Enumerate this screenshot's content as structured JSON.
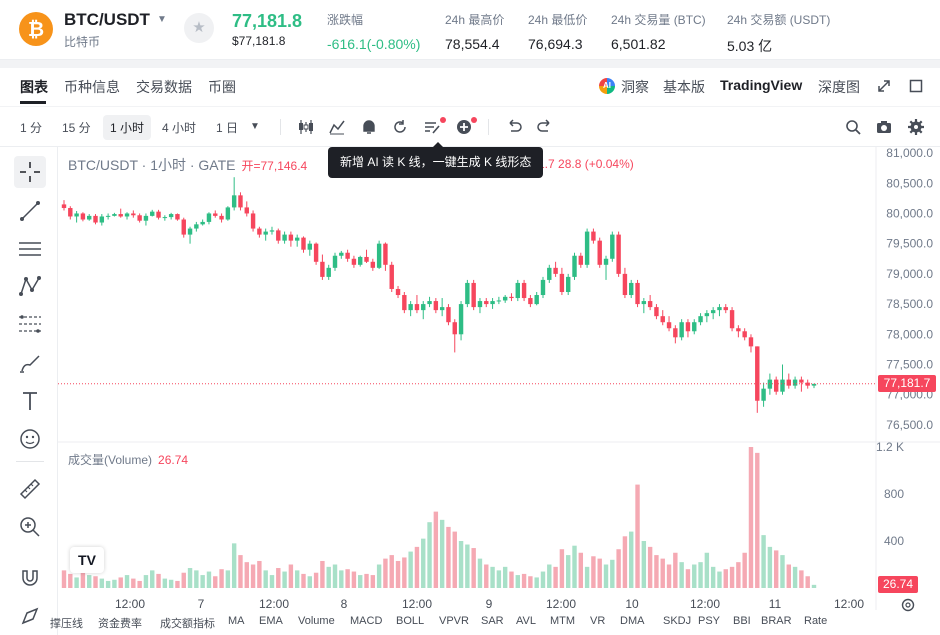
{
  "header": {
    "pair": "BTC/USDT",
    "pair_sub": "比特币",
    "coin_symbol": "₿",
    "last_price": "77,181.8",
    "last_price_sub": "$77,181.8",
    "stats": [
      {
        "label": "涨跌幅",
        "value": "-616.1(-0.80%)",
        "colored": true
      },
      {
        "label": "24h 最高价",
        "value": "78,554.4",
        "colored": false
      },
      {
        "label": "24h 最低价",
        "value": "76,694.3",
        "colored": false
      },
      {
        "label": "24h 交易量 (BTC)",
        "value": "6,501.82",
        "colored": false
      },
      {
        "label": "24h 交易额 (USDT)",
        "value": "5.03 亿",
        "colored": false
      }
    ]
  },
  "tabs": {
    "items": [
      "图表",
      "币种信息",
      "交易数据",
      "币圈"
    ],
    "right": {
      "ai": "洞察",
      "basic": "基本版",
      "tv": "TradingView",
      "depth": "深度图"
    }
  },
  "toolbar": {
    "timeframes": [
      "1 分",
      "15 分",
      "1 小时",
      "4 小时",
      "1 日"
    ],
    "active_timeframe": "1 小时"
  },
  "legend": {
    "title": "BTC/USDT · 1小时 · GATE",
    "open_text": "开=77,146.4",
    "right_text": "1.7  28.8 (+0.04%)",
    "volume_label": "成交量(Volume)",
    "volume_value": "26.74"
  },
  "tooltip": "新增 AI 读 K 线，一键生成 K 线形态",
  "price_tag": "77,181.7",
  "volume_tag": "26.74",
  "indicators": [
    "撑压线",
    "资金费率",
    "成交额指标",
    "MA",
    "EMA",
    "Volume",
    "MACD",
    "BOLL",
    "VPVR",
    "SAR",
    "AVL",
    "MTM",
    "VR",
    "DMA",
    "SKDJ",
    "PSY",
    "BBI",
    "BRAR",
    "Rate"
  ],
  "colors": {
    "up": "#2ebd85",
    "down": "#f6465d",
    "up_vol": "#a8e0c8",
    "down_vol": "#f5a9b3"
  },
  "chart_data": {
    "type": "candlestick",
    "title": "BTC/USDT · 1小时 · GATE",
    "price_axis": {
      "ticks": [
        81000,
        80500,
        80000,
        79500,
        79000,
        78500,
        78000,
        77500,
        77000,
        76500
      ],
      "range": [
        76300,
        81100
      ]
    },
    "volume_axis": {
      "ticks": [
        "1.2 K",
        "800",
        "400"
      ],
      "range": [
        0,
        1200
      ]
    },
    "x_ticks": [
      "12:00",
      "7",
      "12:00",
      "8",
      "12:00",
      "9",
      "12:00",
      "10",
      "12:00",
      "11",
      "12:00"
    ],
    "current_price": 77181.7,
    "candles": [
      [
        80150,
        80220,
        80050,
        80090,
        150
      ],
      [
        80090,
        80120,
        79900,
        79950,
        120
      ],
      [
        79950,
        80040,
        79850,
        80000,
        90
      ],
      [
        80000,
        80020,
        79870,
        79900,
        130
      ],
      [
        79900,
        79990,
        79880,
        79960,
        110
      ],
      [
        79960,
        79990,
        79820,
        79850,
        100
      ],
      [
        79850,
        79990,
        79800,
        79950,
        80
      ],
      [
        79950,
        80000,
        79900,
        79960,
        60
      ],
      [
        79960,
        80010,
        79950,
        79990,
        70
      ],
      [
        79990,
        80080,
        79930,
        79950,
        90
      ],
      [
        79950,
        80020,
        79900,
        80000,
        110
      ],
      [
        80000,
        80050,
        79930,
        79970,
        80
      ],
      [
        79970,
        80000,
        79850,
        79880,
        60
      ],
      [
        79880,
        80000,
        79800,
        79960,
        110
      ],
      [
        79960,
        80060,
        79950,
        80030,
        150
      ],
      [
        80030,
        80060,
        79900,
        79930,
        120
      ],
      [
        79930,
        79970,
        79880,
        79940,
        80
      ],
      [
        79940,
        80010,
        79900,
        79990,
        70
      ],
      [
        79990,
        80000,
        79880,
        79900,
        60
      ],
      [
        79900,
        79930,
        79600,
        79650,
        130
      ],
      [
        79650,
        79780,
        79500,
        79750,
        170
      ],
      [
        79750,
        79860,
        79700,
        79820,
        150
      ],
      [
        79820,
        79900,
        79800,
        79860,
        110
      ],
      [
        79860,
        80020,
        79820,
        80000,
        140
      ],
      [
        80000,
        80050,
        79930,
        79960,
        100
      ],
      [
        79960,
        80000,
        79850,
        79900,
        160
      ],
      [
        79900,
        80120,
        79880,
        80100,
        150
      ],
      [
        80100,
        80600,
        80050,
        80300,
        380
      ],
      [
        80300,
        80350,
        80050,
        80100,
        280
      ],
      [
        80100,
        80200,
        79950,
        80000,
        220
      ],
      [
        80000,
        80050,
        79700,
        79750,
        200
      ],
      [
        79750,
        79780,
        79600,
        79650,
        230
      ],
      [
        79650,
        79750,
        79550,
        79700,
        150
      ],
      [
        79700,
        79780,
        79650,
        79720,
        110
      ],
      [
        79720,
        79750,
        79500,
        79550,
        170
      ],
      [
        79550,
        79700,
        79500,
        79650,
        140
      ],
      [
        79650,
        79700,
        79450,
        79550,
        200
      ],
      [
        79550,
        79650,
        79450,
        79600,
        150
      ],
      [
        79600,
        79620,
        79350,
        79400,
        120
      ],
      [
        79400,
        79550,
        79300,
        79500,
        100
      ],
      [
        79500,
        79520,
        79150,
        79200,
        130
      ],
      [
        79200,
        79320,
        78900,
        78950,
        230
      ],
      [
        78950,
        79150,
        78900,
        79100,
        180
      ],
      [
        79100,
        79350,
        79050,
        79300,
        200
      ],
      [
        79300,
        79380,
        79250,
        79350,
        150
      ],
      [
        79350,
        79400,
        79200,
        79250,
        160
      ],
      [
        79250,
        79300,
        79100,
        79150,
        140
      ],
      [
        79150,
        79300,
        79120,
        79280,
        110
      ],
      [
        79280,
        79400,
        79180,
        79200,
        120
      ],
      [
        79200,
        79250,
        79050,
        79100,
        110
      ],
      [
        79100,
        79550,
        79080,
        79500,
        200
      ],
      [
        79500,
        79520,
        79050,
        79150,
        250
      ],
      [
        79150,
        79200,
        78700,
        78750,
        280
      ],
      [
        78750,
        78800,
        78600,
        78650,
        230
      ],
      [
        78650,
        78700,
        78350,
        78400,
        260
      ],
      [
        78400,
        78550,
        78300,
        78500,
        310
      ],
      [
        78500,
        78650,
        78350,
        78400,
        350
      ],
      [
        78400,
        78550,
        78250,
        78500,
        420
      ],
      [
        78500,
        78620,
        78450,
        78550,
        560
      ],
      [
        78550,
        78600,
        78350,
        78400,
        650
      ],
      [
        78400,
        78600,
        78300,
        78450,
        580
      ],
      [
        78450,
        78500,
        78150,
        78200,
        520
      ],
      [
        78200,
        78250,
        77700,
        78000,
        480
      ],
      [
        78000,
        78550,
        77900,
        78500,
        400
      ],
      [
        78500,
        78900,
        78450,
        78850,
        370
      ],
      [
        78850,
        78900,
        78400,
        78450,
        340
      ],
      [
        78450,
        78600,
        78350,
        78550,
        250
      ],
      [
        78550,
        78600,
        78450,
        78500,
        200
      ],
      [
        78500,
        78600,
        78420,
        78550,
        180
      ],
      [
        78550,
        78620,
        78500,
        78560,
        150
      ],
      [
        78560,
        78650,
        78520,
        78620,
        180
      ],
      [
        78620,
        78680,
        78550,
        78600,
        140
      ],
      [
        78600,
        78900,
        78550,
        78850,
        110
      ],
      [
        78850,
        78900,
        78550,
        78600,
        120
      ],
      [
        78600,
        78650,
        78450,
        78500,
        100
      ],
      [
        78500,
        78700,
        78480,
        78650,
        90
      ],
      [
        78650,
        78950,
        78600,
        78900,
        140
      ],
      [
        78900,
        79150,
        78850,
        79100,
        200
      ],
      [
        79100,
        79200,
        78950,
        79000,
        180
      ],
      [
        79000,
        79100,
        78650,
        78700,
        330
      ],
      [
        78700,
        79000,
        78650,
        78950,
        280
      ],
      [
        78950,
        79350,
        78900,
        79300,
        360
      ],
      [
        79300,
        79350,
        79100,
        79150,
        300
      ],
      [
        79150,
        79750,
        79100,
        79700,
        180
      ],
      [
        79700,
        79750,
        79500,
        79550,
        270
      ],
      [
        79550,
        79600,
        79100,
        79150,
        250
      ],
      [
        79150,
        79300,
        78900,
        79250,
        200
      ],
      [
        79250,
        79700,
        79200,
        79650,
        240
      ],
      [
        79650,
        79700,
        78950,
        79000,
        330
      ],
      [
        79000,
        79100,
        78600,
        78650,
        440
      ],
      [
        78650,
        78900,
        78600,
        78850,
        480
      ],
      [
        78850,
        78900,
        78450,
        78500,
        880
      ],
      [
        78500,
        78600,
        78350,
        78550,
        400
      ],
      [
        78550,
        78650,
        78400,
        78450,
        350
      ],
      [
        78450,
        78500,
        78250,
        78300,
        280
      ],
      [
        78300,
        78400,
        78150,
        78200,
        250
      ],
      [
        78200,
        78300,
        78050,
        78100,
        200
      ],
      [
        78100,
        78150,
        77850,
        77950,
        300
      ],
      [
        77950,
        78250,
        77900,
        78200,
        220
      ],
      [
        78200,
        78250,
        77950,
        78050,
        160
      ],
      [
        78050,
        78250,
        78000,
        78200,
        200
      ],
      [
        78200,
        78350,
        78150,
        78300,
        220
      ],
      [
        78300,
        78400,
        78200,
        78350,
        300
      ],
      [
        78350,
        78450,
        78250,
        78400,
        180
      ],
      [
        78400,
        78500,
        78300,
        78450,
        140
      ],
      [
        78450,
        78500,
        78350,
        78400,
        160
      ],
      [
        78400,
        78450,
        78050,
        78100,
        180
      ],
      [
        78100,
        78150,
        77950,
        78050,
        220
      ],
      [
        78050,
        78100,
        77900,
        77950,
        300
      ],
      [
        77950,
        78000,
        77700,
        77800,
        1200
      ],
      [
        77800,
        77800,
        76700,
        76900,
        1150
      ],
      [
        76900,
        77200,
        76800,
        77100,
        450
      ],
      [
        77100,
        77350,
        77000,
        77250,
        350
      ],
      [
        77250,
        77300,
        77000,
        77050,
        320
      ],
      [
        77050,
        77500,
        77000,
        77250,
        280
      ],
      [
        77250,
        77350,
        77100,
        77150,
        200
      ],
      [
        77150,
        77300,
        77100,
        77250,
        180
      ],
      [
        77250,
        77300,
        77050,
        77200,
        150
      ],
      [
        77200,
        77250,
        77100,
        77150,
        100
      ],
      [
        77150,
        77180,
        77110,
        77180,
        26.74
      ]
    ]
  }
}
